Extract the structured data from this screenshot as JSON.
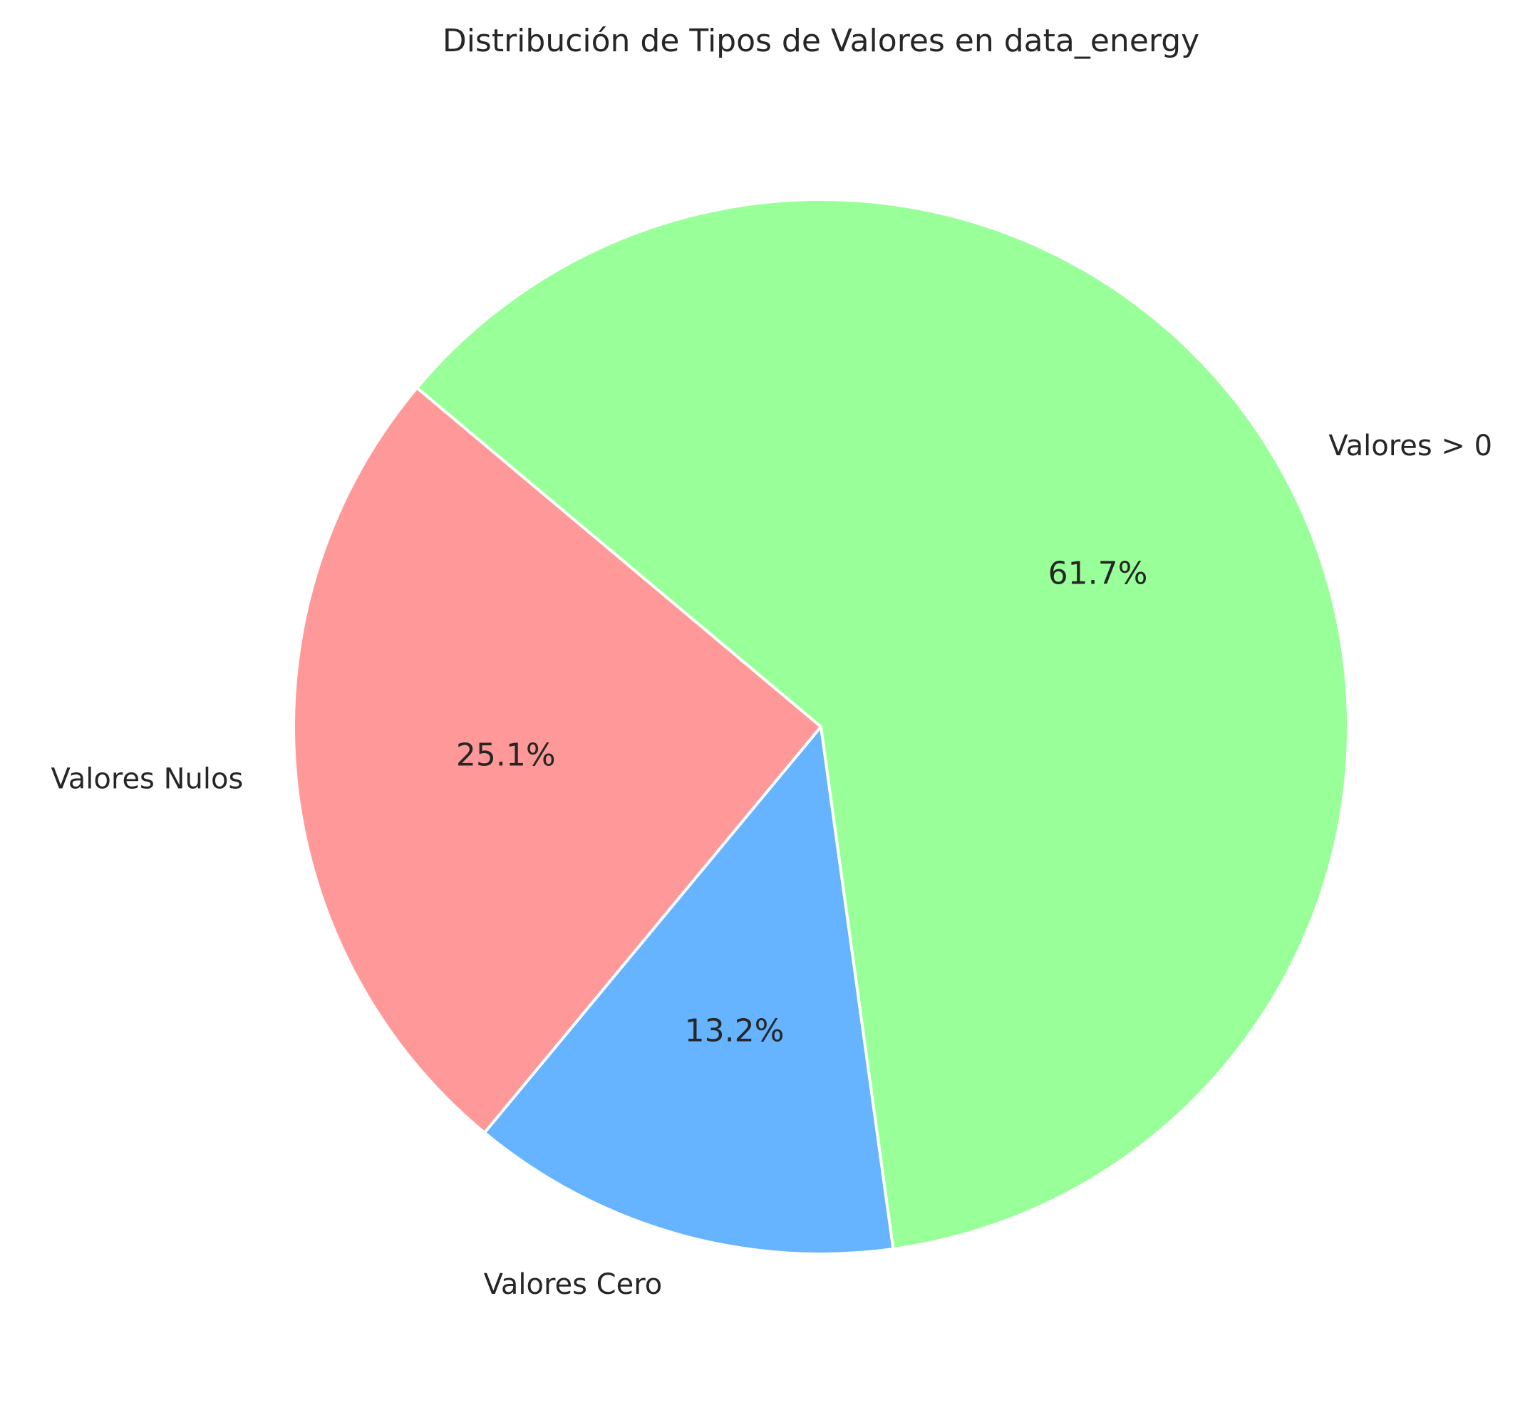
{
  "chart_data": {
    "type": "pie",
    "title": "Distribución de Tipos de Valores en data_energy",
    "labels": [
      "Valores Nulos",
      "Valores Cero",
      "Valores > 0"
    ],
    "values": [
      25.1,
      13.2,
      61.7
    ],
    "value_labels": [
      "25.1%",
      "13.2%",
      "61.7%"
    ],
    "colors": [
      "#ff9999",
      "#66b3ff",
      "#99ff99"
    ],
    "start_angle_deg": 140,
    "direction": "counterclockwise",
    "legend": "none"
  }
}
